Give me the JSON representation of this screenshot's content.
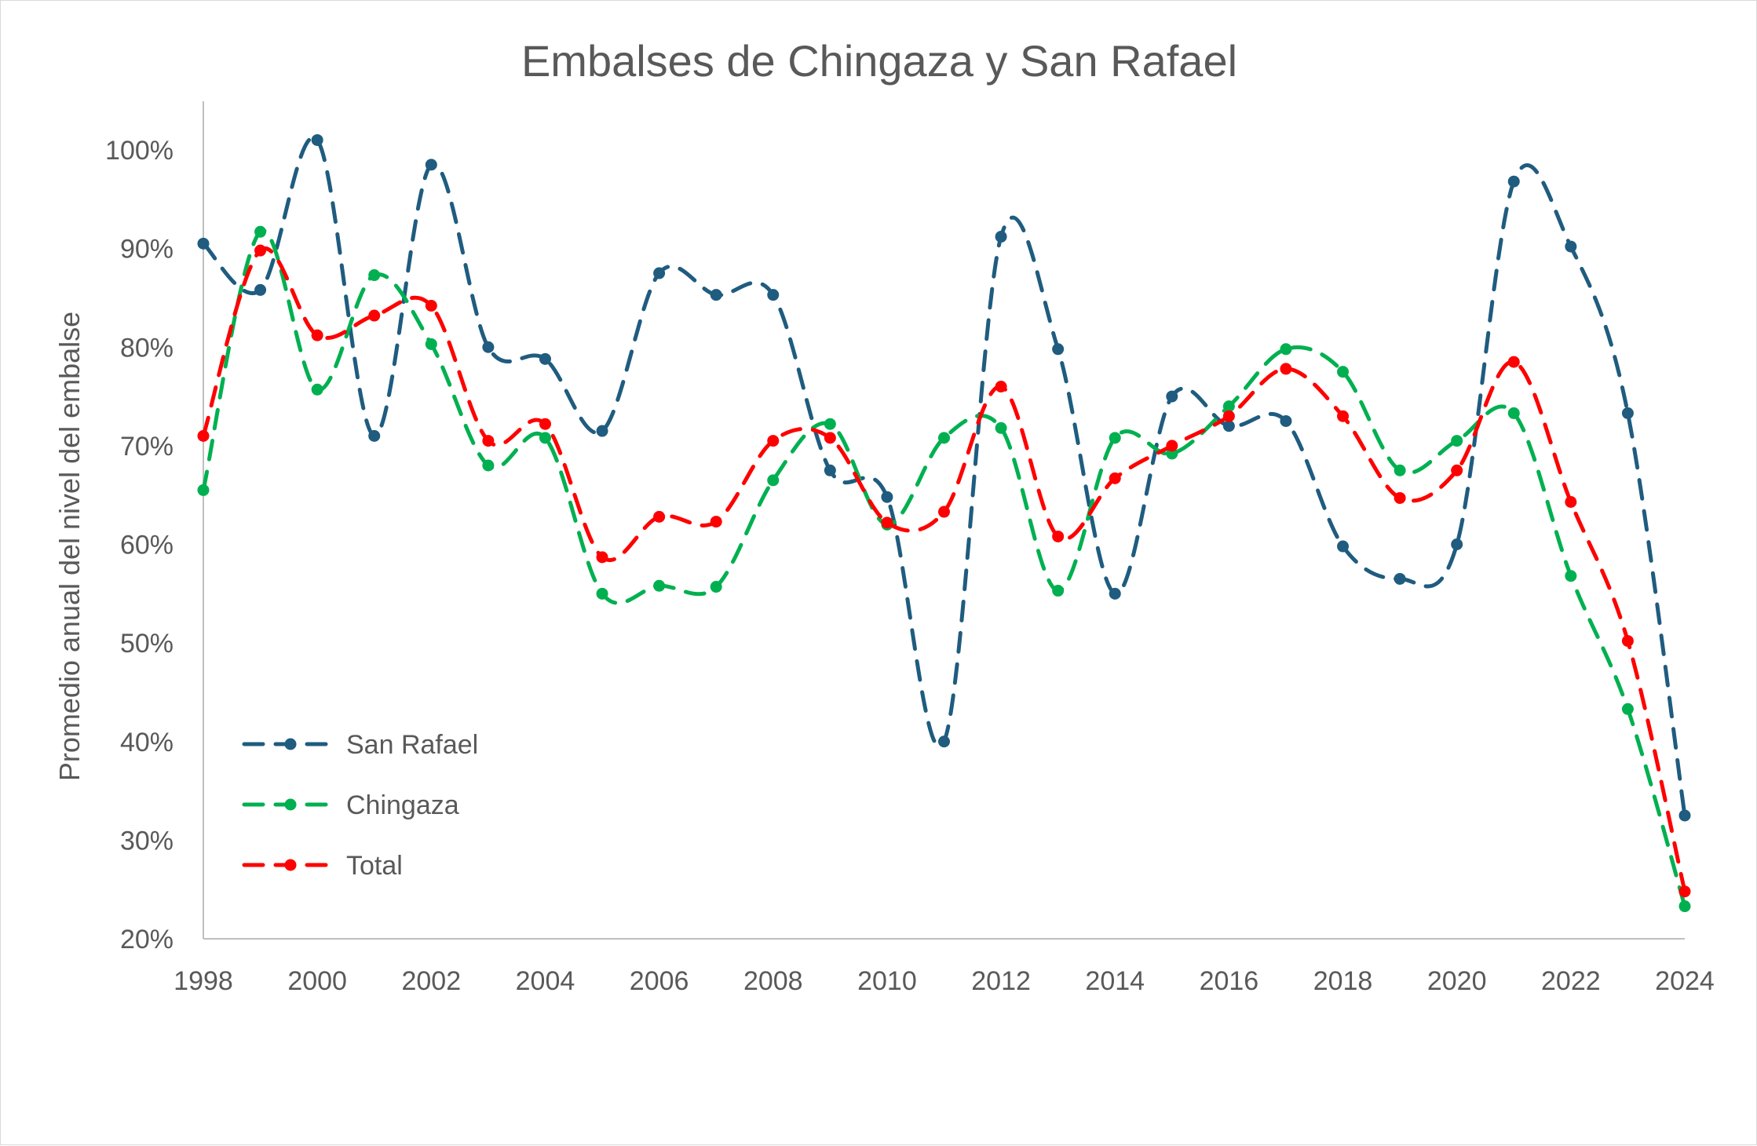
{
  "chart_data": {
    "type": "line",
    "title": "Embalses de Chingaza y San Rafael",
    "xlabel": "",
    "ylabel": "Promedio anual del nivel del embalse",
    "x": [
      1998,
      1999,
      2000,
      2001,
      2002,
      2003,
      2004,
      2005,
      2006,
      2007,
      2008,
      2009,
      2010,
      2011,
      2012,
      2013,
      2014,
      2015,
      2016,
      2017,
      2018,
      2019,
      2020,
      2021,
      2022,
      2023,
      2024
    ],
    "x_ticks": [
      "1998",
      "2000",
      "2002",
      "2004",
      "2006",
      "2008",
      "2010",
      "2012",
      "2014",
      "2016",
      "2018",
      "2020",
      "2022",
      "2024"
    ],
    "y_ticks": [
      "20%",
      "30%",
      "40%",
      "50%",
      "60%",
      "70%",
      "80%",
      "90%",
      "100%"
    ],
    "xlim": [
      1998,
      2024
    ],
    "ylim": [
      20,
      105
    ],
    "grid": false,
    "legend_position": "bottom-left",
    "line_style": "dashed-smoothed-with-markers",
    "series": [
      {
        "name": "San Rafael",
        "color": "#1f5c7f",
        "values": [
          90.5,
          85.8,
          101.0,
          71.0,
          98.5,
          80.0,
          78.8,
          71.5,
          87.5,
          85.3,
          85.3,
          67.5,
          64.8,
          40.0,
          91.2,
          79.8,
          55.0,
          75.0,
          72.0,
          72.5,
          59.8,
          56.5,
          60.0,
          96.8,
          90.2,
          73.3,
          32.5
        ]
      },
      {
        "name": "Chingaza",
        "color": "#00b050",
        "values": [
          65.5,
          91.7,
          75.7,
          87.3,
          80.3,
          68.0,
          70.8,
          55.0,
          55.8,
          55.7,
          66.5,
          72.2,
          62.0,
          70.8,
          71.8,
          55.3,
          70.8,
          69.2,
          74.0,
          79.8,
          77.5,
          67.5,
          70.5,
          73.3,
          56.8,
          43.3,
          23.3
        ]
      },
      {
        "name": "Total",
        "color": "#ff0000",
        "values": [
          71.0,
          89.8,
          81.2,
          83.2,
          84.2,
          70.5,
          72.2,
          58.7,
          62.8,
          62.3,
          70.5,
          70.8,
          62.2,
          63.3,
          76.0,
          60.8,
          66.7,
          70.0,
          73.0,
          77.8,
          73.0,
          64.7,
          67.5,
          78.5,
          64.3,
          50.2,
          24.8
        ]
      }
    ]
  }
}
